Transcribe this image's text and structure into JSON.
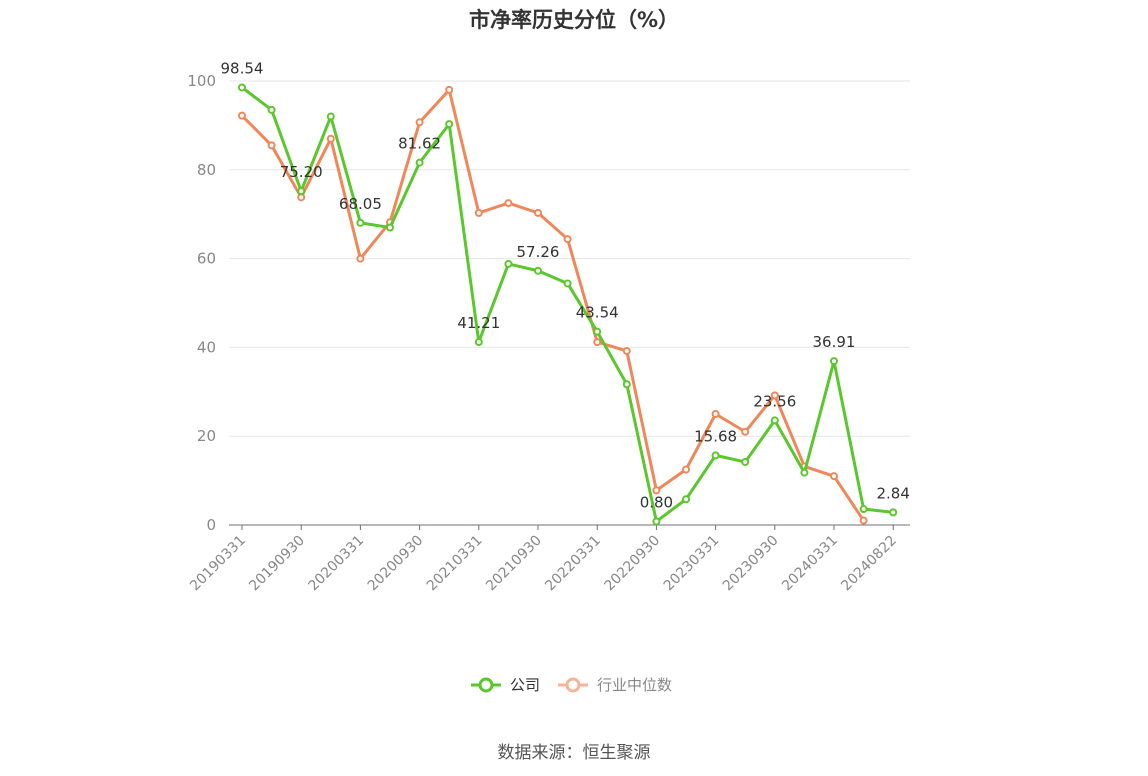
{
  "title": "市净率历史分位（%）",
  "source": "数据来源：恒生聚源",
  "chart_data": {
    "type": "line",
    "title": "市净率历史分位（%）",
    "xlabel": "",
    "ylabel": "",
    "ylim": [
      0,
      100
    ],
    "yticks": [
      0,
      20,
      40,
      60,
      80,
      100
    ],
    "grid": true,
    "legend_position": "bottom",
    "x_ticks": [
      "20190331",
      "20190930",
      "20200331",
      "20200930",
      "20210331",
      "20210930",
      "20220331",
      "20220930",
      "20230331",
      "20230930",
      "20240331",
      "20240822"
    ],
    "x": [
      "20190331",
      "20190630",
      "20190930",
      "20191231",
      "20200331",
      "20200630",
      "20200930",
      "20201231",
      "20210331",
      "20210630",
      "20210930",
      "20211231",
      "20220331",
      "20220630",
      "20220930",
      "20221231",
      "20230331",
      "20230630",
      "20230930",
      "20231231",
      "20240331",
      "20240630",
      "20240822"
    ],
    "series": [
      {
        "name": "公司",
        "color": "#5ac72c",
        "values": [
          98.54,
          93.5,
          75.2,
          92.0,
          68.05,
          67.0,
          81.62,
          90.3,
          41.21,
          58.8,
          57.26,
          54.4,
          43.54,
          31.7,
          0.8,
          5.8,
          15.68,
          14.2,
          23.56,
          11.8,
          36.91,
          3.6,
          2.84
        ],
        "labels": [
          "98.54",
          "",
          "75.20",
          "",
          "68.05",
          "",
          "81.62",
          "",
          "41.21",
          "",
          "57.26",
          "",
          "43.54",
          "",
          "0.80",
          "",
          "15.68",
          "",
          "23.56",
          "",
          "36.91",
          "",
          "2.84"
        ]
      },
      {
        "name": "行业中位数",
        "color": "#f0875a",
        "values": [
          92.2,
          85.5,
          73.8,
          87.0,
          60.0,
          68.2,
          90.7,
          98.0,
          70.3,
          72.5,
          70.3,
          64.4,
          41.2,
          39.2,
          7.8,
          12.5,
          25.0,
          21.0,
          29.2,
          13.2,
          11.0,
          1.0,
          null
        ],
        "labels": []
      }
    ]
  }
}
